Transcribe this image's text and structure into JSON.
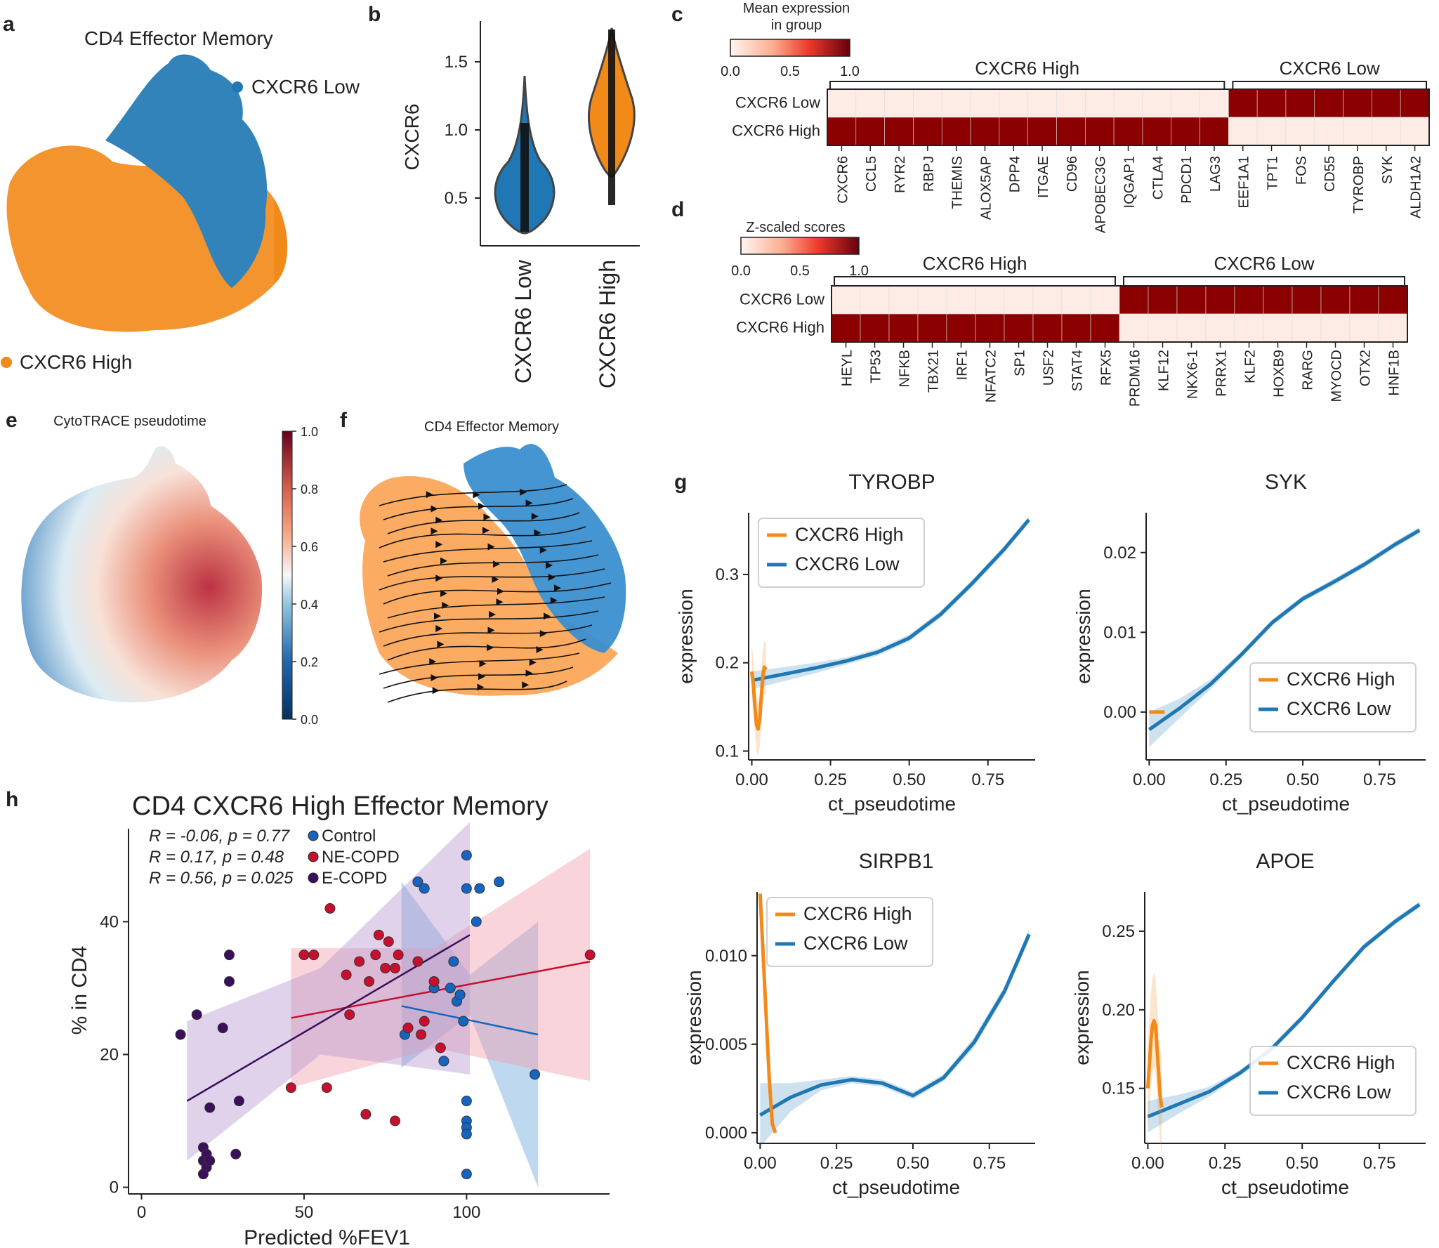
{
  "colors": {
    "high": "#f28a1a",
    "low": "#1f77b4",
    "heat_hi": "#8b0000",
    "heat_lo": "#fdece6",
    "control": "#1565c0",
    "necopd": "#c8102e",
    "ecopd": "#3b0f5c"
  },
  "panels": {
    "a": {
      "label": "a",
      "title": "CD4 Effector Memory",
      "legend_low": "CXCR6 Low",
      "legend_high": "CXCR6 High"
    },
    "b": {
      "label": "b",
      "ylabel": "CXCR6",
      "yticks": [
        "0.5",
        "1.0",
        "1.5"
      ],
      "categories": [
        "CXCR6 Low",
        "CXCR6 High"
      ]
    },
    "c": {
      "label": "c",
      "cbar_title_1": "Mean expression",
      "cbar_title_2": "in group",
      "cbar_ticks": [
        "0.0",
        "0.5",
        "1.0"
      ],
      "group_high": "CXCR6 High",
      "group_low": "CXCR6 Low",
      "rows": [
        "CXCR6 Low",
        "CXCR6 High"
      ],
      "genes": [
        "CXCR6",
        "CCL5",
        "RYR2",
        "RBPJ",
        "THEMIS",
        "ALOX5AP",
        "DPP4",
        "ITGAE",
        "CD96",
        "APOBEC3G",
        "IQGAP1",
        "CTLA4",
        "PDCD1",
        "LAG3",
        "EEF1A1",
        "TPT1",
        "FOS",
        "CD55",
        "TYROBP",
        "SYK",
        "ALDH1A2"
      ],
      "n_high": 14
    },
    "d": {
      "label": "d",
      "cbar_title": "Z-scaled scores",
      "cbar_ticks": [
        "0.0",
        "0.5",
        "1.0"
      ],
      "group_high": "CXCR6 High",
      "group_low": "CXCR6 Low",
      "rows": [
        "CXCR6 Low",
        "CXCR6 High"
      ],
      "genes": [
        "HEYL",
        "TP53",
        "NFKB",
        "TBX21",
        "IRF1",
        "NFATC2",
        "SP1",
        "USF2",
        "STAT4",
        "RFX5",
        "PRDM16",
        "KLF12",
        "NKX6-1",
        "PRRX1",
        "KLF2",
        "HOXB9",
        "RARG",
        "MYOCD",
        "OTX2",
        "HNF1B"
      ],
      "n_high": 10
    },
    "e": {
      "label": "e",
      "title": "CytoTRACE pseudotime",
      "cbar_ticks": [
        "0.0",
        "0.2",
        "0.4",
        "0.6",
        "0.8",
        "1.0"
      ]
    },
    "f": {
      "label": "f",
      "title": "CD4 Effector Memory"
    },
    "g": {
      "label": "g",
      "legend_high": "CXCR6 High",
      "legend_low": "CXCR6 Low",
      "xlabel": "ct_pseudotime",
      "ylabel": "expression"
    },
    "h": {
      "label": "h",
      "title": "CD4 CXCR6 High Effector Memory",
      "stats": [
        {
          "r": "R = -0.06, ",
          "p": "p = 0.77",
          "group": "Control"
        },
        {
          "r": "R = 0.17, ",
          "p": "p = 0.48",
          "group": "NE-COPD"
        },
        {
          "r": "R = 0.56, ",
          "p": "p = 0.025",
          "group": "E-COPD"
        }
      ],
      "xlabel": "Predicted %FEV1",
      "ylabel": "% in CD4"
    }
  },
  "chart_data": [
    {
      "id": "g1",
      "type": "line",
      "title": "TYROBP",
      "xlabel": "ct_pseudotime",
      "ylabel": "expression",
      "xlim": [
        -0.01,
        0.9
      ],
      "ylim": [
        0.09,
        0.37
      ],
      "xticks": [
        0.0,
        0.25,
        0.5,
        0.75
      ],
      "xtick_labels": [
        "0.00",
        "0.25",
        "0.50",
        "0.75"
      ],
      "yticks": [
        0.1,
        0.2,
        0.3
      ],
      "ytick_labels": [
        "0.1",
        "0.2",
        "0.3"
      ],
      "legend": "top-left",
      "series": [
        {
          "name": "CXCR6 Low",
          "x": [
            0.0,
            0.1,
            0.2,
            0.3,
            0.4,
            0.5,
            0.6,
            0.7,
            0.8,
            0.88
          ],
          "y": [
            0.18,
            0.187,
            0.194,
            0.202,
            0.212,
            0.228,
            0.255,
            0.29,
            0.328,
            0.362
          ],
          "band": [
            0.01,
            0.008,
            0.006,
            0.004,
            0.004,
            0.004,
            0.004,
            0.004,
            0.004,
            0.004
          ]
        },
        {
          "name": "CXCR6 High",
          "x": [
            0.0,
            0.005,
            0.01,
            0.015,
            0.02,
            0.025,
            0.03,
            0.035,
            0.04,
            0.045
          ],
          "y": [
            0.19,
            0.175,
            0.15,
            0.13,
            0.125,
            0.135,
            0.16,
            0.185,
            0.195,
            0.192
          ],
          "band": [
            0.03,
            0.03,
            0.03,
            0.03,
            0.03,
            0.03,
            0.03,
            0.03,
            0.03,
            0.03
          ]
        }
      ]
    },
    {
      "id": "g2",
      "type": "line",
      "title": "SYK",
      "xlabel": "ct_pseudotime",
      "ylabel": "expression",
      "xlim": [
        -0.01,
        0.9
      ],
      "ylim": [
        -0.006,
        0.025
      ],
      "xticks": [
        0.0,
        0.25,
        0.5,
        0.75
      ],
      "xtick_labels": [
        "0.00",
        "0.25",
        "0.50",
        "0.75"
      ],
      "yticks": [
        0.0,
        0.01,
        0.02
      ],
      "ytick_labels": [
        "0.00",
        "0.01",
        "0.02"
      ],
      "legend": "bottom-right",
      "series": [
        {
          "name": "CXCR6 Low",
          "x": [
            0.0,
            0.1,
            0.2,
            0.3,
            0.4,
            0.5,
            0.6,
            0.7,
            0.8,
            0.88
          ],
          "y": [
            -0.0022,
            0.0005,
            0.0035,
            0.0072,
            0.0112,
            0.0142,
            0.0163,
            0.0185,
            0.021,
            0.0228
          ],
          "band": [
            0.0022,
            0.0012,
            0.0006,
            0.0004,
            0.0004,
            0.0004,
            0.0004,
            0.0004,
            0.0004,
            0.0004
          ]
        },
        {
          "name": "CXCR6 High",
          "x": [
            0.0,
            0.01,
            0.02,
            0.03,
            0.04,
            0.05
          ],
          "y": [
            0.0,
            0.0,
            0.0,
            0.0,
            0.0,
            0.0
          ],
          "band": [
            0.0002,
            0.0002,
            0.0002,
            0.0002,
            0.0002,
            0.0002
          ]
        }
      ]
    },
    {
      "id": "g3",
      "type": "line",
      "title": "SIRPB1",
      "xlabel": "ct_pseudotime",
      "ylabel": "expression",
      "xlim": [
        -0.01,
        0.9
      ],
      "ylim": [
        -0.0006,
        0.0136
      ],
      "xticks": [
        0.0,
        0.25,
        0.5,
        0.75
      ],
      "xtick_labels": [
        "0.00",
        "0.25",
        "0.50",
        "0.75"
      ],
      "yticks": [
        0.0,
        0.005,
        0.01
      ],
      "ytick_labels": [
        "0.000",
        "0.005",
        "0.010"
      ],
      "legend": "top-left",
      "series": [
        {
          "name": "CXCR6 Low",
          "x": [
            0.0,
            0.1,
            0.2,
            0.3,
            0.4,
            0.5,
            0.6,
            0.7,
            0.8,
            0.88
          ],
          "y": [
            0.001,
            0.002,
            0.0027,
            0.003,
            0.0028,
            0.0021,
            0.0031,
            0.0051,
            0.008,
            0.0112
          ],
          "band": [
            0.0018,
            0.0008,
            0.0003,
            0.0002,
            0.0002,
            0.0002,
            0.0002,
            0.0003,
            0.0003,
            0.0003
          ]
        },
        {
          "name": "CXCR6 High",
          "x": [
            0.0,
            0.01,
            0.02,
            0.03,
            0.04,
            0.05
          ],
          "y": [
            0.0135,
            0.01,
            0.0065,
            0.003,
            0.0005,
            0.0
          ],
          "band": [
            0.0005,
            0.0005,
            0.0005,
            0.0005,
            0.0003,
            0.0001
          ]
        }
      ]
    },
    {
      "id": "g4",
      "type": "line",
      "title": "APOE",
      "xlabel": "ct_pseudotime",
      "ylabel": "expression",
      "xlim": [
        -0.01,
        0.9
      ],
      "ylim": [
        0.115,
        0.275
      ],
      "xticks": [
        0.0,
        0.25,
        0.5,
        0.75
      ],
      "xtick_labels": [
        "0.00",
        "0.25",
        "0.50",
        "0.75"
      ],
      "yticks": [
        0.15,
        0.2,
        0.25
      ],
      "ytick_labels": [
        "0.15",
        "0.20",
        "0.25"
      ],
      "legend": "bottom-right",
      "series": [
        {
          "name": "CXCR6 Low",
          "x": [
            0.0,
            0.1,
            0.2,
            0.3,
            0.4,
            0.5,
            0.6,
            0.7,
            0.8,
            0.88
          ],
          "y": [
            0.132,
            0.14,
            0.148,
            0.16,
            0.175,
            0.195,
            0.218,
            0.24,
            0.256,
            0.267
          ],
          "band": [
            0.01,
            0.006,
            0.003,
            0.002,
            0.002,
            0.002,
            0.002,
            0.002,
            0.002,
            0.002
          ]
        },
        {
          "name": "CXCR6 High",
          "x": [
            0.0,
            0.005,
            0.01,
            0.015,
            0.02,
            0.025,
            0.03,
            0.035,
            0.04,
            0.045
          ],
          "y": [
            0.15,
            0.165,
            0.18,
            0.19,
            0.193,
            0.19,
            0.175,
            0.16,
            0.145,
            0.138
          ],
          "band": [
            0.03,
            0.03,
            0.03,
            0.03,
            0.03,
            0.03,
            0.03,
            0.03,
            0.03,
            0.03
          ]
        }
      ]
    },
    {
      "id": "h",
      "type": "scatter",
      "title": "CD4 CXCR6 High Effector Memory",
      "xlabel": "Predicted %FEV1",
      "ylabel": "% in CD4",
      "xlim": [
        -4,
        144
      ],
      "ylim": [
        -1,
        54
      ],
      "xticks": [
        0,
        50,
        100
      ],
      "yticks": [
        0,
        20,
        40
      ],
      "series": [
        {
          "name": "Control",
          "x": [
            85,
            87,
            90,
            95,
            96,
            97,
            98,
            99,
            100,
            100,
            100,
            100,
            100,
            100,
            100,
            103,
            104,
            110,
            121,
            93,
            81
          ],
          "y": [
            46,
            45,
            30,
            30,
            34,
            28,
            29,
            25,
            50,
            45,
            13,
            10,
            9,
            8,
            2,
            40,
            45,
            46,
            17,
            19,
            23
          ],
          "fit": [
            [
              80,
              27.3
            ],
            [
              122,
              23.0
            ]
          ],
          "band": [
            [
              80,
              18
            ],
            [
              101,
              26
            ],
            [
              122,
              0
            ],
            [
              122,
              40
            ],
            [
              101,
              32
            ],
            [
              80,
              46
            ]
          ]
        },
        {
          "name": "NE-COPD",
          "x": [
            50,
            53,
            58,
            57,
            63,
            64,
            67,
            70,
            72,
            73,
            75,
            78,
            79,
            82,
            85,
            90,
            76,
            87,
            92,
            86,
            138,
            46,
            69,
            78
          ],
          "y": [
            35,
            35,
            42,
            15,
            32,
            26,
            34,
            31,
            35,
            38,
            33,
            33,
            35,
            24,
            34,
            31,
            37,
            25,
            21,
            23,
            35,
            15,
            11,
            10
          ],
          "fit": [
            [
              46,
              25.5
            ],
            [
              138,
              34.0
            ]
          ],
          "band": [
            [
              46,
              15
            ],
            [
              90,
              21
            ],
            [
              138,
              16
            ],
            [
              138,
              51
            ],
            [
              90,
              36
            ],
            [
              46,
              36
            ]
          ]
        },
        {
          "name": "E-COPD",
          "x": [
            12,
            17,
            19,
            19,
            20,
            20,
            21,
            21,
            25,
            27,
            27,
            30,
            29,
            19
          ],
          "y": [
            23,
            26,
            6,
            4,
            5,
            3,
            12,
            4,
            24,
            35,
            31,
            13,
            5,
            2
          ],
          "fit": [
            [
              14,
              13.0
            ],
            [
              101,
              38.0
            ]
          ],
          "band": [
            [
              14,
              4
            ],
            [
              55,
              20
            ],
            [
              101,
              17
            ],
            [
              101,
              55
            ],
            [
              55,
              33
            ],
            [
              14,
              25
            ]
          ]
        }
      ]
    }
  ]
}
